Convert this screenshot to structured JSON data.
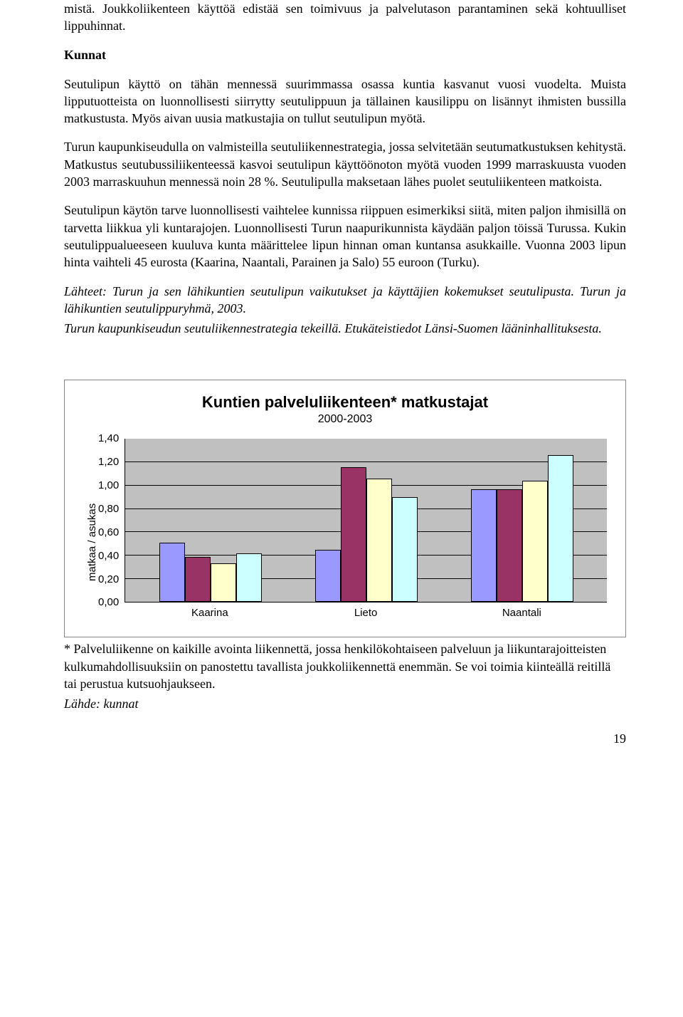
{
  "paragraphs": {
    "p1": "mistä. Joukkoliikenteen käyttöä edistää sen toimivuus ja palvelutason parantaminen sekä kohtuulliset lippuhinnat.",
    "h_kunnat": "Kunnat",
    "p2": "Seutulipun käyttö on tähän mennessä suurimmassa osassa kuntia kasvanut vuosi vuodelta. Muista lipputuotteista on luonnollisesti siirrytty seutulippuun ja tällainen kausilippu on lisännyt ihmisten bussilla matkustusta. Myös aivan uusia matkustajia on tullut seutulipun myötä.",
    "p3": "Turun kaupunkiseudulla on valmisteilla seutuliikennestrategia, jossa selvitetään seutumatkustuksen kehitystä. Matkustus seutubussiliikenteessä kasvoi seutulipun käyttöönoton myötä vuoden 1999 marraskuusta vuoden 2003 marraskuuhun mennessä noin 28 %. Seutulipulla maksetaan lähes puolet seutuliikenteen matkoista.",
    "p4": "Seutulipun käytön tarve luonnollisesti vaihtelee kunnissa riippuen esimerkiksi siitä, miten paljon ihmisillä on tarvetta liikkua yli kuntarajojen. Luonnollisesti Turun naapurikunnista käydään paljon töissä Turussa. Kukin seutulippualueeseen kuuluva kunta määrittelee lipun hinnan oman kuntansa asukkaille. Vuonna 2003 lipun hinta vaihteli 45 eurosta (Kaarina, Naantali, Parainen ja Salo) 55 euroon (Turku).",
    "p5": "Lähteet: Turun ja sen lähikuntien seutulipun vaikutukset ja käyttäjien kokemukset seutulipusta. Turun ja lähikuntien seutulippuryhmä, 2003.",
    "p6": "Turun kaupunkiseudun seutuliikennestrategia tekeillä. Etukäteistiedot Länsi-Suomen lääninhallituksesta."
  },
  "chart": {
    "title": "Kuntien palveluliikenteen* matkustajat",
    "subtitle": "2000-2003",
    "y_label": "matkaa / asukas",
    "y_ticks": [
      "1,40",
      "1,20",
      "1,00",
      "0,80",
      "0,60",
      "0,40",
      "0,20",
      "0,00"
    ],
    "y_max": 1.4,
    "plot_bg": "#c0c0c0",
    "grid_color": "#000000",
    "bar_border": "#000000",
    "series_colors": [
      "#9999ff",
      "#993366",
      "#ffffcc",
      "#ccffff"
    ],
    "categories": [
      "Kaarina",
      "Lieto",
      "Naantali"
    ],
    "data": [
      [
        0.51,
        0.39,
        0.33,
        0.42
      ],
      [
        0.45,
        1.16,
        1.06,
        0.9
      ],
      [
        0.97,
        0.97,
        1.04,
        1.26
      ]
    ]
  },
  "chart_footnote": {
    "l1": "* Palveluliikenne on kaikille avointa liikennettä, jossa henkilökohtaiseen palveluun ja liikuntarajoitteisten kulkumahdollisuuksiin on panostettu tavallista joukkoliikennettä enemmän. Se voi toimia kiinteällä reitillä tai perustua kutsuohjaukseen.",
    "l2": "Lähde: kunnat"
  },
  "page_number": "19"
}
